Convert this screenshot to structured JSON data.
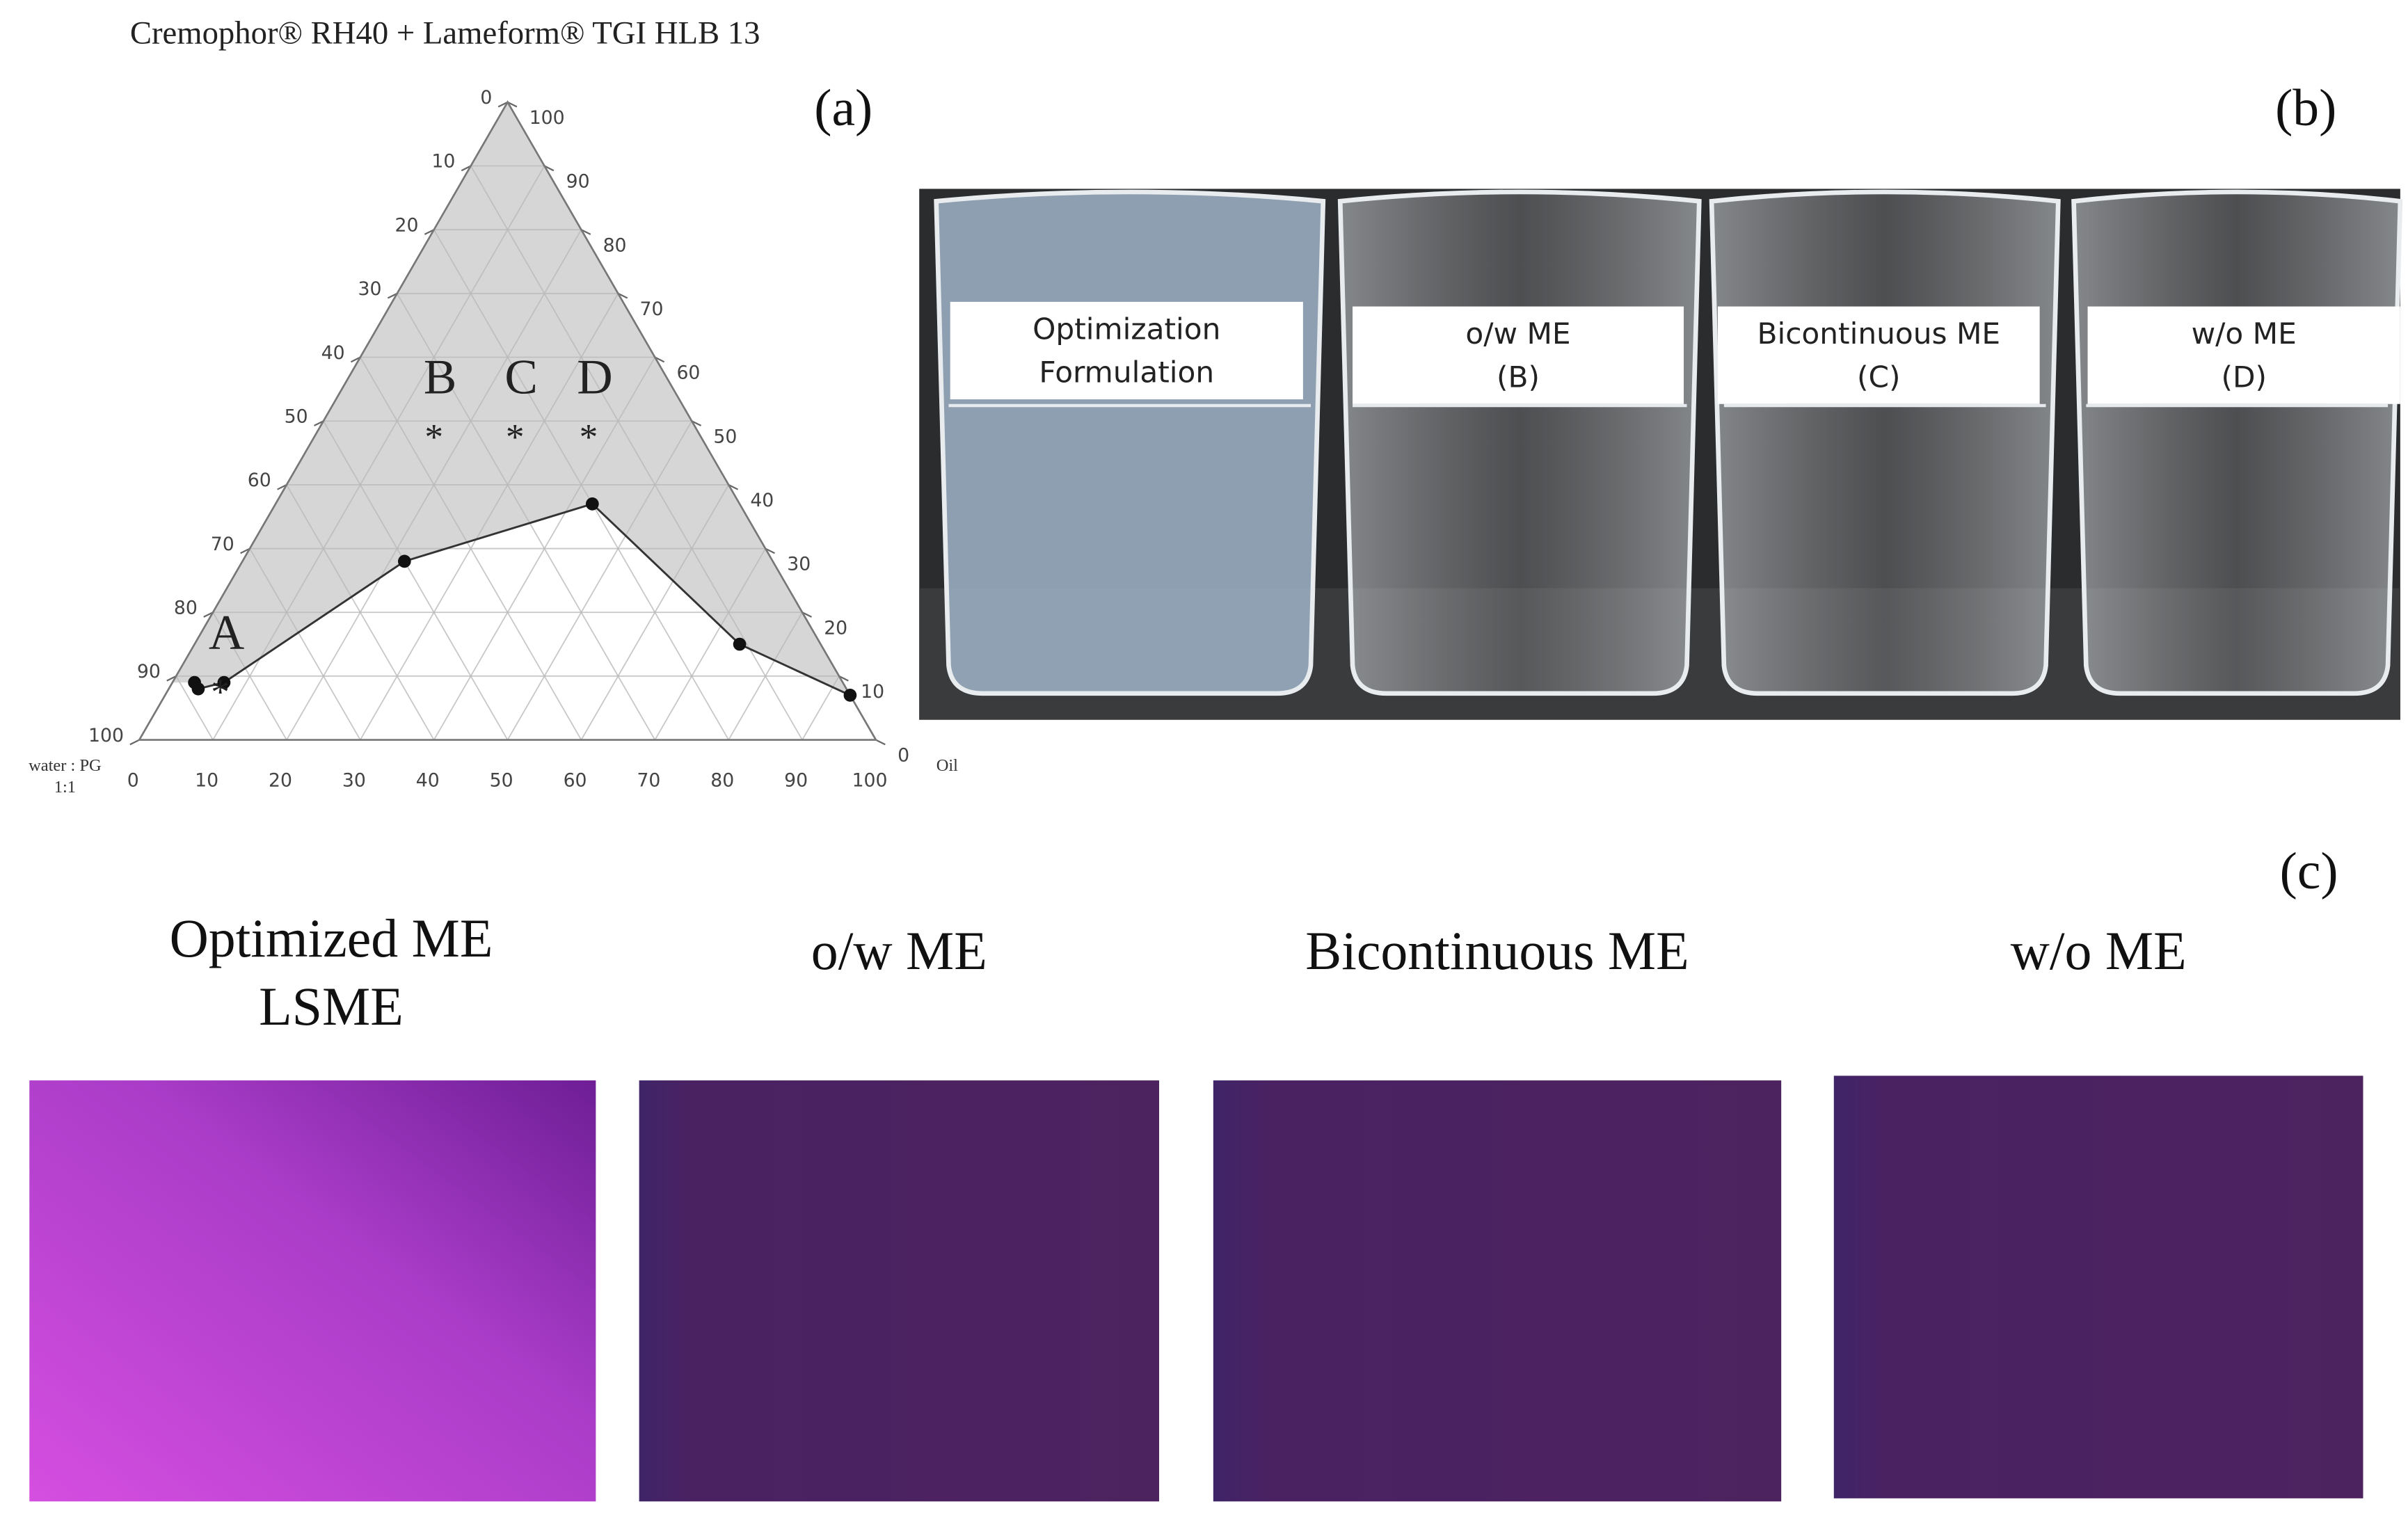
{
  "figure": {
    "panel_a": {
      "label": "(a)",
      "title": "Cremophor® RH40 + Lameform® TGI   HLB 13",
      "axes": {
        "bottom": {
          "name": "Oil",
          "ticks": [
            0,
            10,
            20,
            30,
            40,
            50,
            60,
            70,
            80,
            90,
            100
          ]
        },
        "right": {
          "ticks": [
            0,
            10,
            20,
            30,
            40,
            50,
            60,
            70,
            80,
            90,
            100
          ]
        },
        "left": {
          "name": [
            "water : PG",
            "1:1"
          ],
          "ticks": [
            0,
            10,
            20,
            30,
            40,
            50,
            60,
            70,
            80,
            90,
            100
          ]
        }
      },
      "boundary": [
        {
          "oil": 3,
          "surfactant": 9
        },
        {
          "oil": 4,
          "surfactant": 8
        },
        {
          "oil": 7,
          "surfactant": 9
        },
        {
          "oil": 22,
          "surfactant": 28
        },
        {
          "oil": 43,
          "surfactant": 37
        },
        {
          "oil": 74,
          "surfactant": 15
        },
        {
          "oil": 93,
          "surfactant": 7
        }
      ],
      "formulations": [
        {
          "label": "A",
          "oil": 7,
          "surfactant": 8
        },
        {
          "label": "B",
          "oil": 16,
          "surfactant": 48
        },
        {
          "label": "C",
          "oil": 27,
          "surfactant": 48
        },
        {
          "label": "D",
          "oil": 37,
          "surfactant": 48
        }
      ]
    },
    "panel_b": {
      "label": "(b)",
      "beakers": [
        {
          "label": [
            "Optimization",
            "Formulation"
          ]
        },
        {
          "label": [
            "o/w ME",
            "(B)"
          ]
        },
        {
          "label": [
            "Bicontinuous ME",
            "(C)"
          ]
        },
        {
          "label": [
            "w/o ME",
            "(D)"
          ]
        }
      ]
    },
    "panel_c": {
      "label": "(c)",
      "samples": [
        {
          "label": [
            "Optimized  ME",
            "LSME"
          ]
        },
        {
          "label": [
            "o/w ME"
          ]
        },
        {
          "label": [
            "Bicontinuous  ME"
          ]
        },
        {
          "label": [
            "w/o ME"
          ]
        }
      ]
    }
  }
}
